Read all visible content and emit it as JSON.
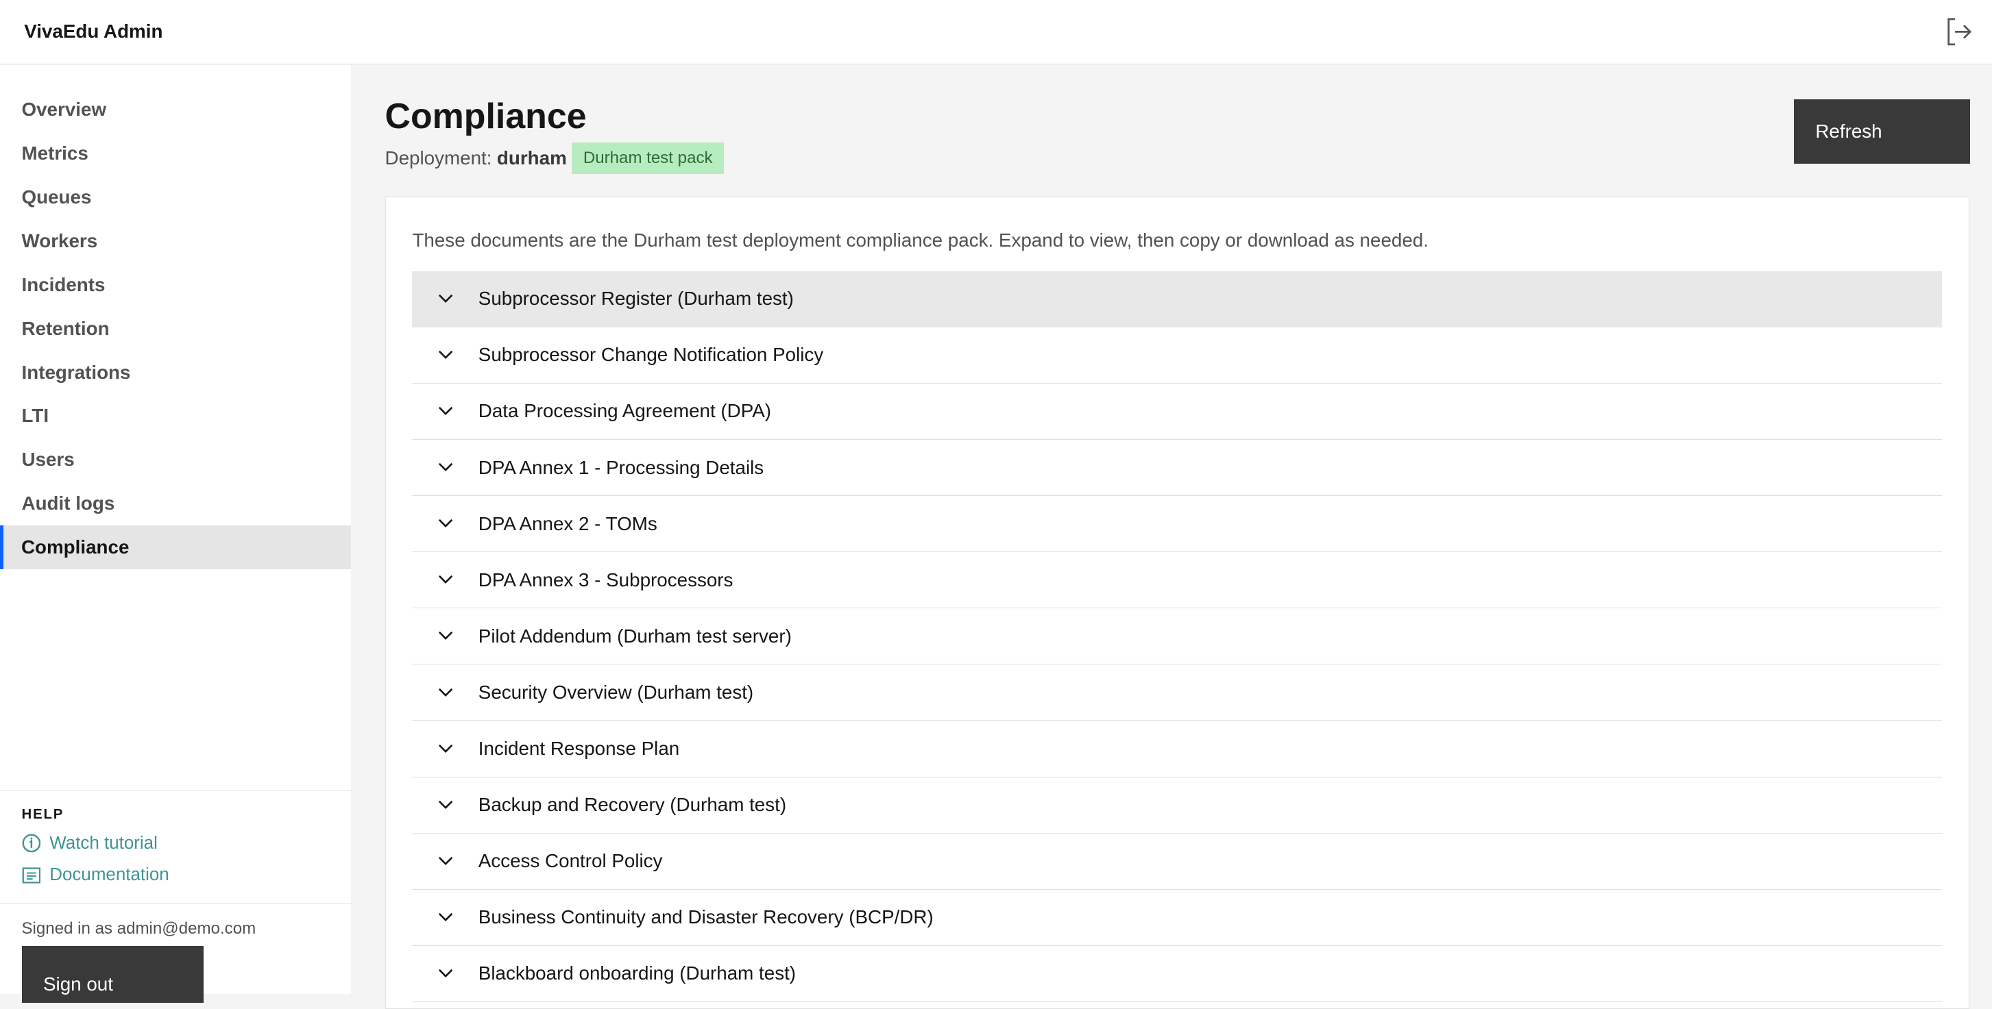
{
  "app": {
    "title": "VivaEdu Admin",
    "logout_icon": "logout-icon"
  },
  "sidebar": {
    "items": [
      {
        "label": "Overview"
      },
      {
        "label": "Metrics"
      },
      {
        "label": "Queues"
      },
      {
        "label": "Workers"
      },
      {
        "label": "Incidents"
      },
      {
        "label": "Retention"
      },
      {
        "label": "Integrations"
      },
      {
        "label": "LTI"
      },
      {
        "label": "Users"
      },
      {
        "label": "Audit logs"
      },
      {
        "label": "Compliance",
        "active": true
      }
    ],
    "help": {
      "title": "HELP",
      "watch_tutorial": "Watch tutorial",
      "documentation": "Documentation"
    },
    "signed_in": "Signed in as admin@demo.com",
    "sign_out": "Sign out"
  },
  "main": {
    "title": "Compliance",
    "deployment_label": "Deployment:",
    "deployment_value": "durham",
    "badge": "Durham test pack",
    "refresh": "Refresh",
    "description": "These documents are the Durham test deployment compliance pack. Expand to view, then copy or download as needed.",
    "documents": [
      "Subprocessor Register (Durham test)",
      "Subprocessor Change Notification Policy",
      "Data Processing Agreement (DPA)",
      "DPA Annex 1 - Processing Details",
      "DPA Annex 2 - TOMs",
      "DPA Annex 3 - Subprocessors",
      "Pilot Addendum (Durham test server)",
      "Security Overview (Durham test)",
      "Incident Response Plan",
      "Backup and Recovery (Durham test)",
      "Access Control Policy",
      "Business Continuity and Disaster Recovery (BCP/DR)",
      "Blackboard onboarding (Durham test)"
    ]
  },
  "colors": {
    "accent": "#0f62fe",
    "link": "#3f9494",
    "badge_bg": "#b7ecc0",
    "button": "#393939"
  }
}
